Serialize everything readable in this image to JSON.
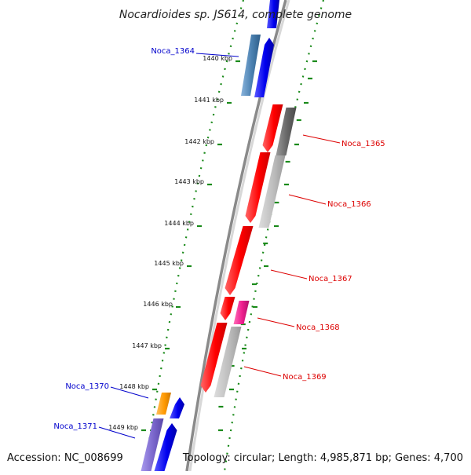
{
  "title": "Nocardioides sp. JS614, complete genome",
  "footer": {
    "accession": "Accession: NC_008699",
    "topology": "Topology: circular; Length: 4,985,871 bp; Genes: 4,700"
  },
  "colors": {
    "backbone": "#8a8a8a",
    "tick_green": "#1a8a1a",
    "forward_label": "#0000cc",
    "reverse_label": "#dd0000",
    "blue": "#0000ee",
    "steel_blue": "#4a80b0",
    "red": "#ff0000",
    "gray_dark": "#666666",
    "gray_light": "#bdbdbd",
    "orange": "#ff9900",
    "magenta": "#ee1c8e",
    "purple": "#7a66cc"
  },
  "ticks": [
    {
      "label": "1440 kbp"
    },
    {
      "label": "1441 kbp"
    },
    {
      "label": "1442 kbp"
    },
    {
      "label": "1443 kbp"
    },
    {
      "label": "1444 kbp"
    },
    {
      "label": "1445 kbp"
    },
    {
      "label": "1446 kbp"
    },
    {
      "label": "1447 kbp"
    },
    {
      "label": "1448 kbp"
    },
    {
      "label": "1449 kbp"
    }
  ],
  "genes": [
    {
      "id": "Noca_1364",
      "label": "Noca_1364",
      "strand": "forward"
    },
    {
      "id": "Noca_1365",
      "label": "Noca_1365",
      "strand": "reverse"
    },
    {
      "id": "Noca_1366",
      "label": "Noca_1366",
      "strand": "reverse"
    },
    {
      "id": "Noca_1367",
      "label": "Noca_1367",
      "strand": "reverse"
    },
    {
      "id": "Noca_1368",
      "label": "Noca_1368",
      "strand": "reverse"
    },
    {
      "id": "Noca_1369",
      "label": "Noca_1369",
      "strand": "reverse"
    },
    {
      "id": "Noca_1370",
      "label": "Noca_1370",
      "strand": "forward"
    },
    {
      "id": "Noca_1371",
      "label": "Noca_1371",
      "strand": "forward"
    }
  ]
}
